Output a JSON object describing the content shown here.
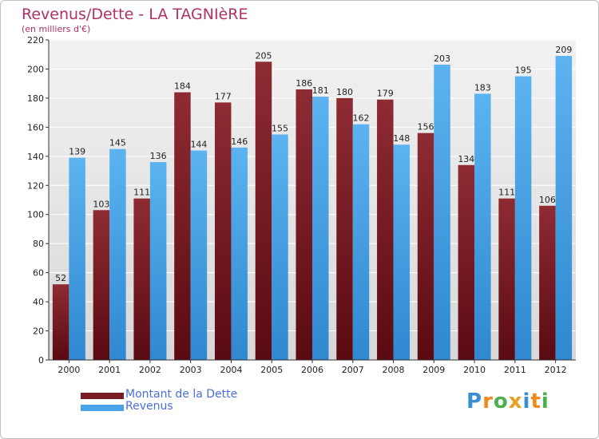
{
  "header": {
    "title": "Revenus/Dette - LA TAGNIèRE",
    "subtitle": "(en milliers d'€)"
  },
  "legend": {
    "items": [
      {
        "label": "Montant de la Dette",
        "color": "#7a1a22"
      },
      {
        "label": "Revenus",
        "color": "#4aa3e8"
      }
    ]
  },
  "logo": {
    "text": "Proxiti",
    "letters": [
      "P",
      "r",
      "o",
      "x",
      "i",
      "t",
      "i"
    ],
    "colors": [
      "#3a8fd0",
      "#f08a1c",
      "#4caf50",
      "#e8a020",
      "#3a8fd0",
      "#f08a1c",
      "#4caf50"
    ]
  },
  "chart_data": {
    "type": "bar",
    "categories": [
      "2000",
      "2001",
      "2002",
      "2003",
      "2004",
      "2005",
      "2006",
      "2007",
      "2008",
      "2009",
      "2010",
      "2011",
      "2012"
    ],
    "series": [
      {
        "name": "Montant de la Dette",
        "values": [
          52,
          103,
          111,
          184,
          177,
          205,
          186,
          180,
          179,
          156,
          134,
          111,
          106
        ],
        "color": "#7a1a22"
      },
      {
        "name": "Revenus",
        "values": [
          139,
          145,
          136,
          144,
          146,
          155,
          181,
          162,
          148,
          203,
          183,
          195,
          209
        ],
        "color": "#4aa3e8"
      }
    ],
    "yticks": [
      0,
      20,
      40,
      60,
      80,
      100,
      120,
      140,
      160,
      180,
      200,
      220
    ],
    "ylim": [
      0,
      220
    ],
    "grid": true,
    "legend": "bottom-left"
  }
}
